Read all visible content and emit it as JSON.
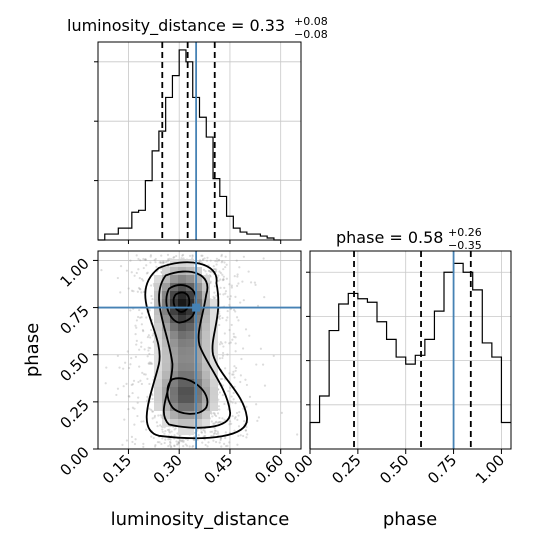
{
  "chart_data": {
    "type": "corner",
    "parameters": [
      "luminosity_distance",
      "phase"
    ],
    "injection": {
      "luminosity_distance": 0.35,
      "phase": 0.75
    },
    "injection_color": "#4682b4",
    "panels": [
      {
        "kind": "histogram",
        "parameter": "luminosity_distance",
        "title_text": "luminosity_distance = 0.33",
        "title_sup": "+0.08",
        "title_sub": "−0.08",
        "xlim": [
          0.06,
          0.66
        ],
        "ylim": [
          0,
          1.0
        ],
        "bin_edges": [
          0.06,
          0.08,
          0.1,
          0.12,
          0.14,
          0.16,
          0.18,
          0.2,
          0.22,
          0.24,
          0.26,
          0.28,
          0.3,
          0.32,
          0.34,
          0.36,
          0.38,
          0.4,
          0.42,
          0.44,
          0.46,
          0.48,
          0.5,
          0.52,
          0.54,
          0.56,
          0.58,
          0.6
        ],
        "counts": [
          0.0,
          0.03,
          0.03,
          0.06,
          0.06,
          0.14,
          0.15,
          0.3,
          0.45,
          0.55,
          0.72,
          0.83,
          0.96,
          0.9,
          0.72,
          0.62,
          0.52,
          0.31,
          0.22,
          0.12,
          0.06,
          0.04,
          0.03,
          0.03,
          0.02,
          0.01,
          0.0
        ],
        "quantile_lines": [
          0.25,
          0.325,
          0.405
        ],
        "ticks": [
          0.15,
          0.3,
          0.45,
          0.6
        ]
      },
      {
        "kind": "histogram",
        "parameter": "phase",
        "title_text": "phase = 0.58",
        "title_sup": "+0.26",
        "title_sub": "−0.35",
        "xlim": [
          0.0,
          1.05
        ],
        "ylim": [
          0,
          1.12
        ],
        "bin_edges": [
          0.0,
          0.05,
          0.1,
          0.15,
          0.2,
          0.25,
          0.3,
          0.35,
          0.4,
          0.45,
          0.5,
          0.55,
          0.6,
          0.65,
          0.7,
          0.75,
          0.8,
          0.85,
          0.9,
          0.95,
          1.0,
          1.05
        ],
        "counts": [
          0.15,
          0.3,
          0.67,
          0.82,
          0.88,
          0.85,
          0.83,
          0.72,
          0.62,
          0.52,
          0.48,
          0.53,
          0.62,
          0.78,
          1.0,
          1.05,
          1.0,
          0.9,
          0.6,
          0.52,
          0.15
        ],
        "quantile_lines": [
          0.23,
          0.58,
          0.84
        ],
        "ticks": [
          0.0,
          0.25,
          0.5,
          0.75,
          1.0
        ],
        "tick_labels": [
          "0.00",
          "0.25",
          "0.50",
          "0.75",
          "1.00"
        ],
        "xlabel": "phase"
      },
      {
        "kind": "density2d",
        "x": "luminosity_distance",
        "y": "phase",
        "xlim": [
          0.06,
          0.66
        ],
        "ylim": [
          0.0,
          1.05
        ],
        "xticks": [
          0.15,
          0.3,
          0.45,
          0.6
        ],
        "xtick_labels": [
          "0.15",
          "0.30",
          "0.45",
          "0.60"
        ],
        "yticks": [
          0.0,
          0.25,
          0.5,
          0.75,
          1.0
        ],
        "ytick_labels": [
          "0.00",
          "0.25",
          "0.50",
          "0.75",
          "1.00"
        ],
        "xlabel": "luminosity_distance",
        "ylabel": "phase",
        "density_modes": [
          {
            "x": 0.31,
            "y": 0.78,
            "sx": 0.045,
            "sy": 0.11,
            "w": 1.0
          },
          {
            "x": 0.32,
            "y": 0.28,
            "sx": 0.05,
            "sy": 0.1,
            "w": 0.75
          },
          {
            "x": 0.32,
            "y": 0.53,
            "sx": 0.05,
            "sy": 0.12,
            "w": 0.45
          }
        ],
        "sample_spread": {
          "x_range": [
            0.08,
            0.62
          ],
          "y_range": [
            0.02,
            1.04
          ]
        }
      }
    ],
    "grid": true
  }
}
